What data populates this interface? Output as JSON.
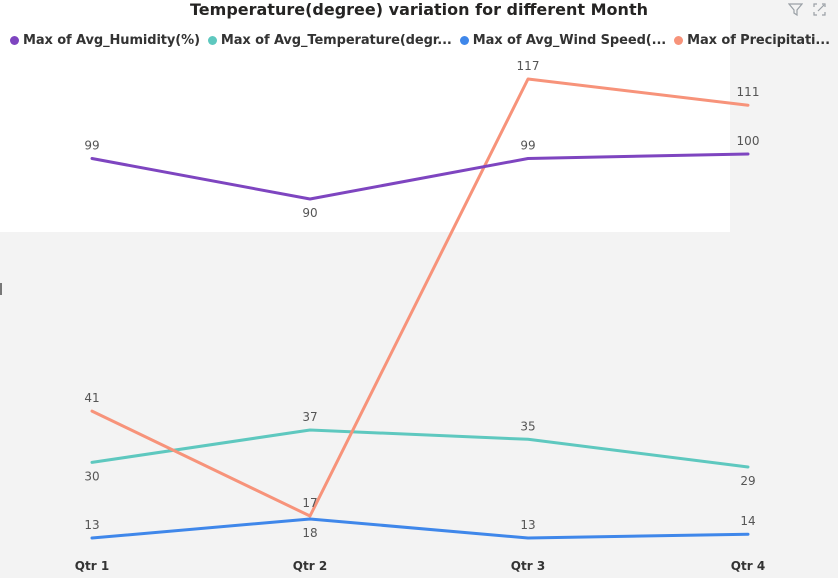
{
  "header": {
    "filter_icon": "filter-icon",
    "focus_icon": "focus-mode-icon"
  },
  "chart_data": {
    "type": "line",
    "title": "Temperature(degree) variation for different Month",
    "xlabel": "",
    "ylabel": "",
    "categories": [
      "Qtr 1",
      "Qtr 2",
      "Qtr 3",
      "Qtr 4"
    ],
    "series": [
      {
        "name": "Max of Avg_Humidity(%)",
        "legend_label": "Max of Avg_Humidity(%)",
        "color": "#7e45c0",
        "values": [
          99,
          90,
          99,
          100
        ]
      },
      {
        "name": "Max of Avg_Temperature(degr...",
        "legend_label": "Max of Avg_Temperature(degr...",
        "color": "#5ec8bf",
        "values": [
          30,
          37,
          35,
          29
        ]
      },
      {
        "name": "Max of Avg_Wind Speed(...",
        "legend_label": "Max of Avg_Wind Speed(...",
        "color": "#3f87ea",
        "values": [
          13,
          18,
          13,
          14
        ]
      },
      {
        "name": "Max of Precipitati...",
        "legend_label": "Max of Precipitati...",
        "color": "#f7937a",
        "values": [
          41,
          17,
          117,
          111
        ]
      }
    ],
    "legend_position": "top-left",
    "grid": false
  }
}
